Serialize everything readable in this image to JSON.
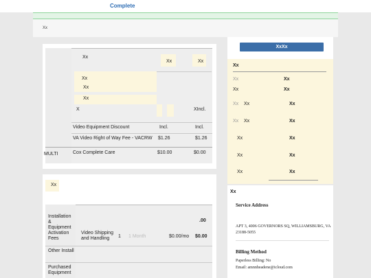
{
  "header": {
    "status": "Complete"
  },
  "crumb": "Xx",
  "services": {
    "top_label": "Xx",
    "top_badge1": "Xx",
    "top_badge2": "Xx",
    "group_items": [
      "Xx",
      "Xx",
      "Xx"
    ],
    "x_label": "X",
    "x_value": "XIncl.",
    "rows": [
      {
        "name": "Video Equipment Discount",
        "price": "Incl.",
        "total": "Incl."
      },
      {
        "name": "VA Video Right of Way Fee - VACRW",
        "price": "$1.26",
        "total": "$1.26"
      },
      {
        "name": "Cox Complete Care",
        "price": "$10.00",
        "total": "$0.00"
      }
    ],
    "left_label": "MULTI"
  },
  "equipment": {
    "title": "Xx",
    "top_amount": ".00",
    "rows": [
      {
        "category": "Installation & Equipment Activation Fees",
        "item": "Video Shipping and Handling",
        "qty": "1",
        "term": "1 Month",
        "price": "$0.00/mo",
        "total": "$0.00"
      },
      {
        "category": "Other Install"
      },
      {
        "category": "Purchased Equipment"
      }
    ]
  },
  "summary": {
    "button_label": "XxXx",
    "header": "Xx",
    "rows": [
      {
        "a": "Xx",
        "b": "",
        "c": "Xx"
      },
      {
        "a": "Xx",
        "b": "",
        "c": "Xx"
      },
      {
        "a": "Xx",
        "b": "Xx",
        "c": "Xx"
      },
      {
        "a": "Xx",
        "b": "Xx",
        "c": "Xx"
      },
      {
        "a": "Xx",
        "b": "",
        "c": "Xx"
      },
      {
        "a": "Xx",
        "b": "",
        "c": "Xx"
      },
      {
        "a": "Xx",
        "b": "",
        "c": "Xx"
      }
    ]
  },
  "account": {
    "header": "Xx",
    "service_address_label": "Service Address",
    "address": "APT 3, 4006 GOVERNORS SQ, WILLIAMSBURG, VA 23188-5055",
    "billing_label": "Billing Method",
    "paperless": "Paperless Billing: No",
    "email": "Email: amnnheadene@icloud.com"
  },
  "colors": {
    "accent": "#2e6db4",
    "button": "#3b6ea8",
    "success_bar": "#e3f4e6",
    "highlight": "#fcf6dd"
  }
}
